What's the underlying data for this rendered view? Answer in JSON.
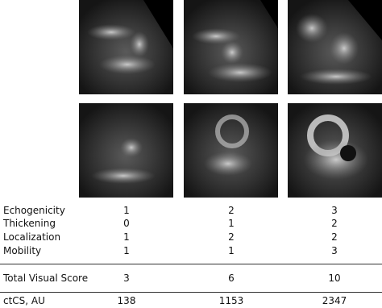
{
  "table": {
    "rows": [
      {
        "label": "Echogenicity",
        "values": [
          1,
          2,
          3
        ]
      },
      {
        "label": "Thickening",
        "values": [
          0,
          1,
          2
        ]
      },
      {
        "label": "Localization",
        "values": [
          1,
          2,
          2
        ]
      },
      {
        "label": "Mobility",
        "values": [
          1,
          1,
          3
        ]
      },
      {
        "label": "Total Visual Score",
        "values": [
          3,
          6,
          10
        ]
      },
      {
        "label": "ctCS, AU",
        "values": [
          138,
          1153,
          2347
        ]
      }
    ]
  }
}
